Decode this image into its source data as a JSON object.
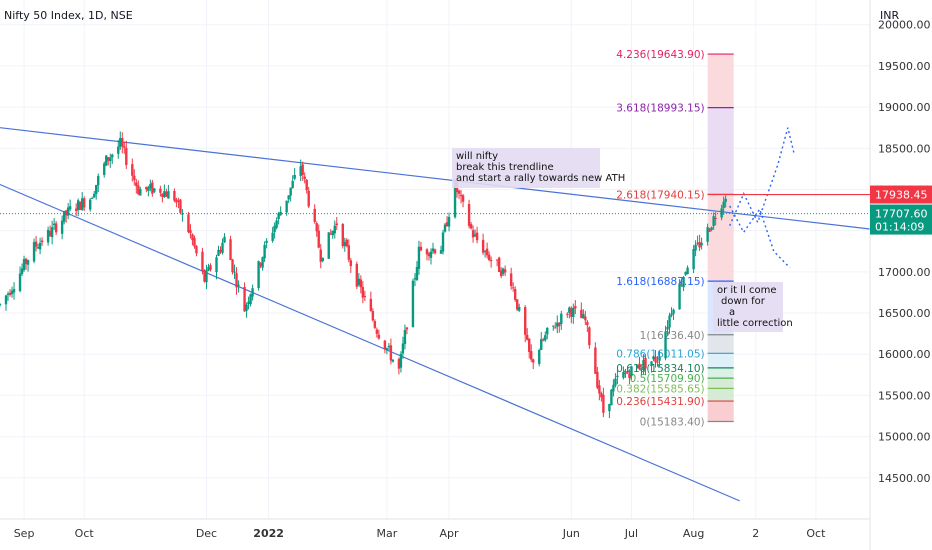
{
  "chart_data": {
    "type": "candlestick",
    "title": "Nifty 50 Index, 1D, NSE",
    "currency": "INR",
    "y_ticks": [
      14500,
      15000,
      15500,
      16000,
      16500,
      17000,
      17500,
      18000,
      18500,
      19000,
      19500,
      20000
    ],
    "y_tick_labels": [
      "14500.00",
      "15000.00",
      "15500.00",
      "16000.00",
      "16500.00",
      "17000.00",
      "17500.00",
      "18000.00",
      "18500.00",
      "19000.00",
      "19500.00",
      "20000.00"
    ],
    "ylim": [
      14000,
      20300
    ],
    "x_ticks": [
      {
        "label": "Sep",
        "date": "2021-09-01",
        "bold": false
      },
      {
        "label": "Oct",
        "date": "2021-10-01",
        "bold": false
      },
      {
        "label": "Dec",
        "date": "2021-12-01",
        "bold": false
      },
      {
        "label": "2022",
        "date": "2022-01-01",
        "bold": true
      },
      {
        "label": "Mar",
        "date": "2022-03-01",
        "bold": false
      },
      {
        "label": "Apr",
        "date": "2022-04-01",
        "bold": false
      },
      {
        "label": "Jun",
        "date": "2022-06-01",
        "bold": false
      },
      {
        "label": "Jul",
        "date": "2022-07-01",
        "bold": false
      },
      {
        "label": "Aug",
        "date": "2022-08-01",
        "bold": false
      },
      {
        "label": "2",
        "date": "2022-09-01",
        "bold": false
      },
      {
        "label": "Oct",
        "date": "2022-10-01",
        "bold": false
      }
    ],
    "xlim": [
      "2021-08-20",
      "2022-10-28"
    ],
    "price_path": [
      [
        "2021-08-20",
        16600
      ],
      [
        "2021-08-28",
        16900
      ],
      [
        "2021-09-06",
        17300
      ],
      [
        "2021-09-15",
        17500
      ],
      [
        "2021-09-24",
        17750
      ],
      [
        "2021-10-04",
        17900
      ],
      [
        "2021-10-12",
        18350
      ],
      [
        "2021-10-19",
        18550
      ],
      [
        "2021-10-28",
        18000
      ],
      [
        "2021-11-08",
        18000
      ],
      [
        "2021-11-15",
        17900
      ],
      [
        "2021-11-23",
        17450
      ],
      [
        "2021-11-30",
        16900
      ],
      [
        "2021-12-10",
        17400
      ],
      [
        "2021-12-20",
        16550
      ],
      [
        "2021-12-31",
        17350
      ],
      [
        "2022-01-10",
        17900
      ],
      [
        "2022-01-17",
        18300
      ],
      [
        "2022-01-27",
        17200
      ],
      [
        "2022-02-04",
        17600
      ],
      [
        "2022-02-14",
        16900
      ],
      [
        "2022-02-24",
        16300
      ],
      [
        "2022-03-07",
        15800
      ],
      [
        "2022-03-17",
        17250
      ],
      [
        "2022-03-28",
        17300
      ],
      [
        "2022-04-04",
        18050
      ],
      [
        "2022-04-13",
        17450
      ],
      [
        "2022-04-22",
        17150
      ],
      [
        "2022-05-02",
        16900
      ],
      [
        "2022-05-12",
        15900
      ],
      [
        "2022-05-20",
        16250
      ],
      [
        "2022-05-31",
        16550
      ],
      [
        "2022-06-08",
        16400
      ],
      [
        "2022-06-17",
        15300
      ],
      [
        "2022-06-24",
        15700
      ],
      [
        "2022-07-04",
        15850
      ],
      [
        "2022-07-14",
        15950
      ],
      [
        "2022-07-21",
        16550
      ],
      [
        "2022-07-29",
        17100
      ],
      [
        "2022-08-08",
        17500
      ],
      [
        "2022-08-17",
        17950
      ]
    ],
    "trendlines": [
      {
        "name": "upper-trendline",
        "from": [
          "2021-08-20",
          18750
        ],
        "to": [
          "2022-10-28",
          17520
        ]
      },
      {
        "name": "lower-trendline",
        "from": [
          "2021-08-20",
          18060
        ],
        "to": [
          "2022-08-24",
          14220
        ]
      }
    ],
    "fibonacci": {
      "start": "2022-08-08",
      "end": "2022-08-21",
      "levels": [
        {
          "ratio": "0",
          "price": 15183.4,
          "label": "0(15183.40)",
          "color": "#888888"
        },
        {
          "ratio": "0.236",
          "price": 15431.9,
          "label": "0.236(15431.90)",
          "color": "#e03e3e"
        },
        {
          "ratio": "0.382",
          "price": 15585.65,
          "label": "0.382(15585.65)",
          "color": "#7fbf5a"
        },
        {
          "ratio": "0.5",
          "price": 15709.9,
          "label": "0.5(15709.90)",
          "color": "#4caf50"
        },
        {
          "ratio": "0.618",
          "price": 15834.1,
          "label": "0.618(15834.10)",
          "color": "#16855f"
        },
        {
          "ratio": "0.786",
          "price": 16011.05,
          "label": "0.786(16011.05)",
          "color": "#29a3d8"
        },
        {
          "ratio": "1",
          "price": 16236.4,
          "label": "1(16236.40)",
          "color": "#888888"
        },
        {
          "ratio": "1.618",
          "price": 16887.15,
          "label": "1.618(16887.15)",
          "color": "#2962ff"
        },
        {
          "ratio": "2.618",
          "price": 17940.15,
          "label": "2.618(17940.15)",
          "color": "#e03e3e"
        },
        {
          "ratio": "3.618",
          "price": 18993.15,
          "label": "3.618(18993.15)",
          "color": "#8e24aa"
        },
        {
          "ratio": "4.236",
          "price": 19643.9,
          "label": "4.236(19643.90)",
          "color": "#e91e63"
        }
      ]
    },
    "projection_up": [
      [
        "2022-08-19",
        17560
      ],
      [
        "2022-08-26",
        17950
      ],
      [
        "2022-09-02",
        17600
      ],
      [
        "2022-09-12",
        18300
      ],
      [
        "2022-09-17",
        18750
      ],
      [
        "2022-09-20",
        18450
      ]
    ],
    "projection_down": [
      [
        "2022-08-19",
        17800
      ],
      [
        "2022-08-26",
        17480
      ],
      [
        "2022-09-03",
        17760
      ],
      [
        "2022-09-10",
        17250
      ],
      [
        "2022-09-18",
        17050
      ]
    ],
    "annotations": [
      {
        "name": "note-breakout",
        "lines": [
          "will nifty",
          "break this trendline",
          "and start a rally towards new ATH"
        ]
      },
      {
        "name": "note-correction",
        "lines": [
          "or it ll come",
          "down for",
          "a",
          "little correction"
        ]
      }
    ],
    "price_tags": [
      {
        "name": "price-tag-red",
        "value": 17938.45,
        "label": "17938.45",
        "color": "#f23645"
      },
      {
        "name": "price-tag-last",
        "value": 17707.6,
        "label": "17707.60",
        "sublabel": "01:14:09",
        "color": "#089981"
      }
    ],
    "colors": {
      "up": "#089981",
      "down": "#f23645",
      "trend": "#4a72d8",
      "grid": "#f0f3fa"
    }
  }
}
